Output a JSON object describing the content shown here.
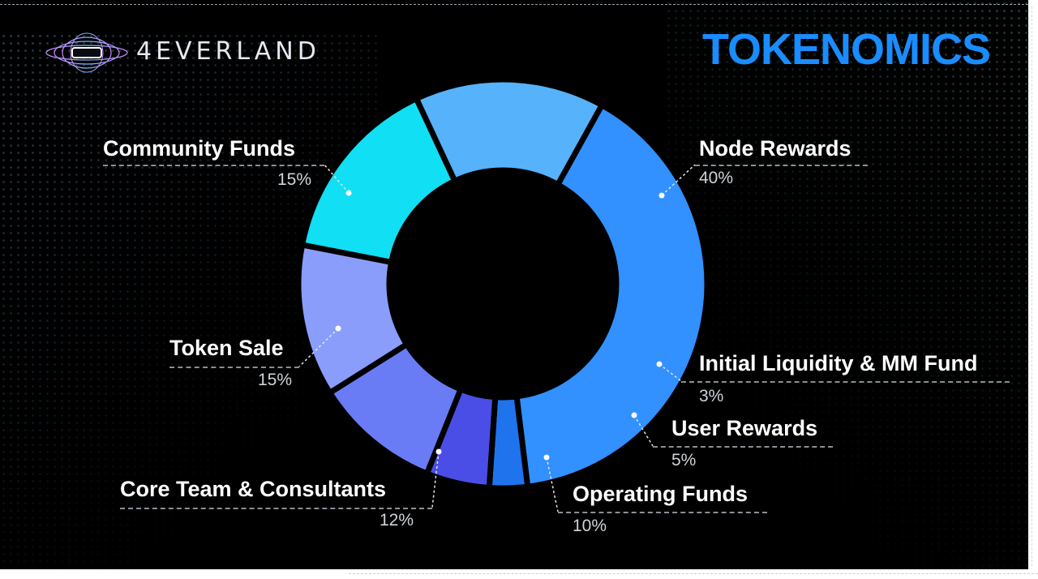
{
  "brand": {
    "name": "4EVERLAND",
    "logo_icon": "4everland-logo-icon"
  },
  "colors": {
    "background": "#000000",
    "title": "#1a8cff",
    "slices": [
      "#3390ff",
      "#1f74ee",
      "#4a4ee6",
      "#6a7cf5",
      "#8b9dfb",
      "#11dff4",
      "#56b2fb"
    ]
  },
  "chart_data": {
    "type": "pie",
    "title": "TOKENOMICS",
    "donut": true,
    "slices": [
      {
        "label": "Node Rewards",
        "value": 40,
        "value_label": "40%"
      },
      {
        "label": "Initial Liquidity & MM Fund",
        "value": 3,
        "value_label": "3%"
      },
      {
        "label": "User Rewards",
        "value": 5,
        "value_label": "5%"
      },
      {
        "label": "Operating Funds",
        "value": 10,
        "value_label": "10%"
      },
      {
        "label": "Core Team & Consultants",
        "value": 12,
        "value_label": "12%"
      },
      {
        "label": "Token Sale",
        "value": 15,
        "value_label": "15%"
      },
      {
        "label": "Community Funds",
        "value": 15,
        "value_label": "15%"
      }
    ]
  }
}
